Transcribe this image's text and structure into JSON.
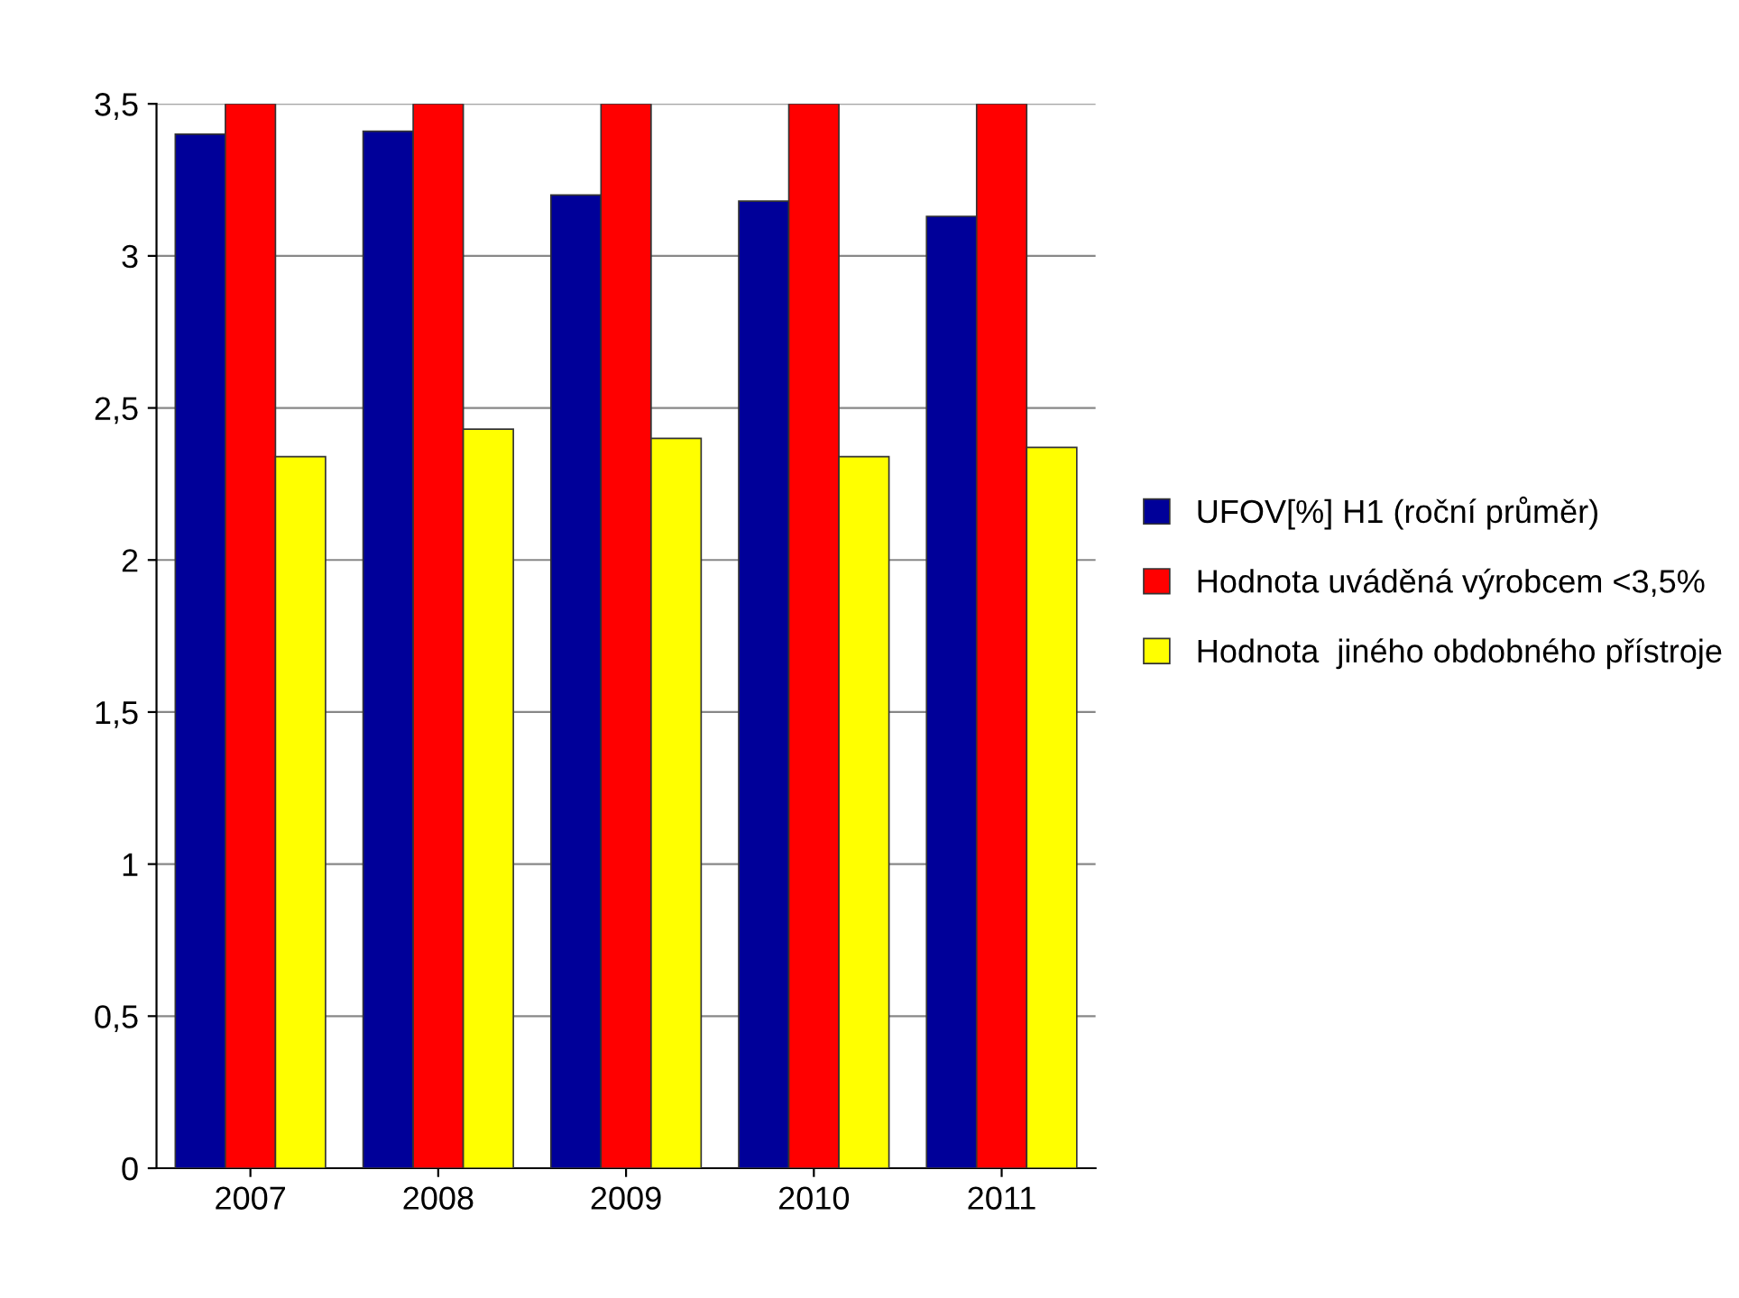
{
  "chart_data": {
    "type": "bar",
    "categories": [
      "2007",
      "2008",
      "2009",
      "2010",
      "2011"
    ],
    "series": [
      {
        "name": "UFOV[%] H1 (roční průměr)",
        "color": "#000099",
        "values": [
          3.4,
          3.41,
          3.2,
          3.18,
          3.13
        ]
      },
      {
        "name": "Hodnota uváděná výrobcem <3,5%",
        "color": "#ff0000",
        "values": [
          3.5,
          3.5,
          3.5,
          3.5,
          3.5
        ]
      },
      {
        "name": "Hodnota  jiného obdobného přístroje",
        "color": "#ffff00",
        "values": [
          2.34,
          2.43,
          2.4,
          2.34,
          2.37
        ]
      }
    ],
    "ylim": [
      0,
      3.5
    ],
    "yticks": [
      0,
      {
        "value": 0.5,
        "label": "0,5"
      },
      1,
      {
        "value": 1.5,
        "label": "1,5"
      },
      2,
      {
        "value": 2.5,
        "label": "2,5"
      },
      3,
      {
        "value": 3.5,
        "label": "3,5"
      }
    ],
    "grid": "y",
    "legend": "right"
  }
}
